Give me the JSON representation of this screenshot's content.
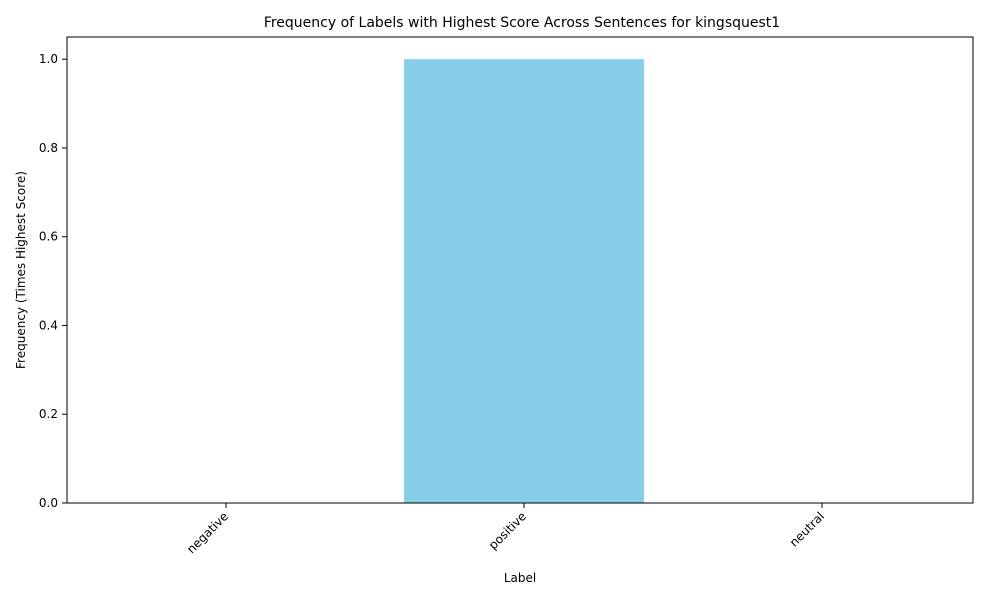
{
  "chart_data": {
    "type": "bar",
    "title": "Frequency of Labels with Highest Score Across Sentences for kingsquest1",
    "xlabel": "Label",
    "ylabel": "Frequency (Times Highest Score)",
    "categories": [
      "negative",
      "positive",
      "neutral"
    ],
    "values": [
      0,
      1,
      0
    ],
    "ylim": [
      0,
      1.05
    ],
    "yticks": [
      0.0,
      0.2,
      0.4,
      0.6,
      0.8,
      1.0
    ],
    "ytick_labels": [
      "0.0",
      "0.2",
      "0.4",
      "0.6",
      "0.8",
      "1.0"
    ],
    "bar_color": "#87CEEB",
    "grid": false,
    "legend": "none"
  }
}
